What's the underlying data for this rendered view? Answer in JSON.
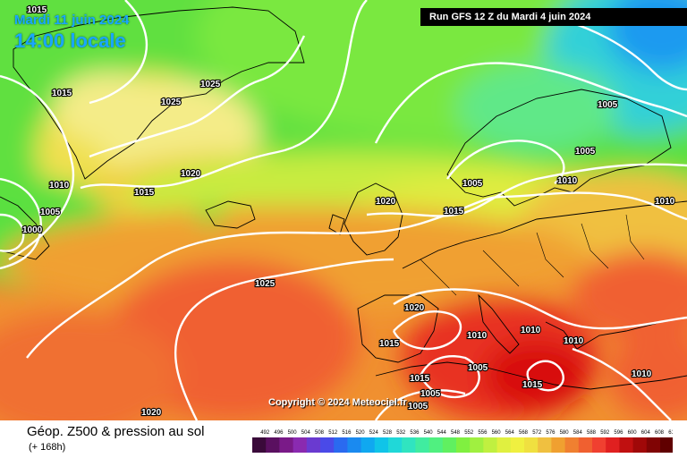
{
  "header": {
    "date_label": "Mardi 11 juin 2024",
    "time_label": "14:00 locale",
    "run_label": "Run GFS 12 Z du Mardi 4 juin 2024"
  },
  "copyright": "Copyright © 2024 Meteociel.fr",
  "footer": {
    "title": "Géop. Z500 & pression au sol",
    "subtitle": "(+ 168h)"
  },
  "legend": {
    "ticks": [
      "492",
      "496",
      "500",
      "504",
      "508",
      "512",
      "516",
      "520",
      "524",
      "528",
      "532",
      "536",
      "540",
      "544",
      "548",
      "552",
      "556",
      "560",
      "564",
      "568",
      "572",
      "576",
      "580",
      "584",
      "588",
      "592",
      "596",
      "600",
      "604",
      "608",
      "612"
    ],
    "colors": [
      "#3a0a3a",
      "#5a1060",
      "#7a1a88",
      "#8a2ab0",
      "#6a3ad0",
      "#4a4ae8",
      "#2a6af0",
      "#1a8af0",
      "#10a8f0",
      "#10c4e8",
      "#20d8d8",
      "#30e4c0",
      "#40eca0",
      "#50f080",
      "#60f060",
      "#80f040",
      "#a0f040",
      "#c0f040",
      "#e0f040",
      "#f0f040",
      "#f0e040",
      "#f0c040",
      "#f0a030",
      "#f08030",
      "#f06030",
      "#f04030",
      "#e02020",
      "#c01010",
      "#a00808",
      "#800404",
      "#600000",
      "#400000"
    ]
  },
  "pressure_labels": [
    "1015",
    "1015",
    "1025",
    "1025",
    "1010",
    "1005",
    "1000",
    "1020",
    "1015",
    "1020",
    "1015",
    "1005",
    "1005",
    "1010",
    "1005",
    "1010",
    "1025",
    "1020",
    "1015",
    "1010",
    "1010",
    "1010",
    "1005",
    "1010",
    "1015",
    "1005",
    "1005",
    "1015",
    "1020"
  ],
  "colors": {
    "run_bar": "#000000",
    "date_text": "#1aa6ff"
  }
}
